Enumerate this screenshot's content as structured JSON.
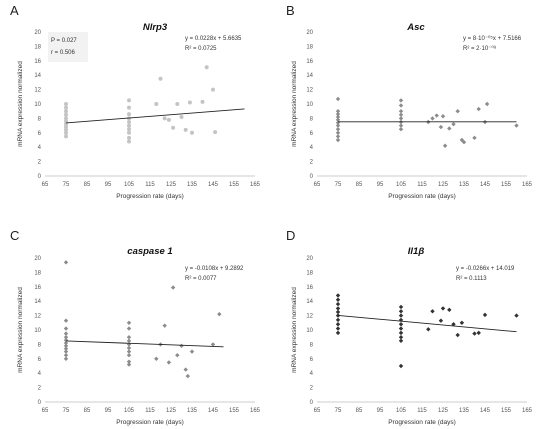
{
  "chart_data": [
    {
      "type": "scatter",
      "panel_label": "A",
      "title": "Nlrp3",
      "xlabel": "Progression rate (days)",
      "ylabel": "mRNA expression normalized",
      "xlim": [
        65,
        165
      ],
      "ylim": [
        0,
        20
      ],
      "xticks": [
        65,
        75,
        85,
        95,
        105,
        115,
        125,
        135,
        145,
        155,
        165
      ],
      "yticks": [
        0,
        2,
        4,
        6,
        8,
        10,
        12,
        14,
        16,
        18,
        20
      ],
      "equation": "y = 0.0228x + 5.6635",
      "r_squared": "R² = 0.0725",
      "stats": [
        "P = 0.027",
        "r = 0.506"
      ],
      "marker_color": "#c4c4c4",
      "marker": "circle",
      "trend": {
        "slope": 0.0228,
        "intercept": 5.6635,
        "x_range": [
          75,
          160
        ]
      },
      "points": [
        {
          "x": 75,
          "y": 5.5
        },
        {
          "x": 75,
          "y": 6.0
        },
        {
          "x": 75,
          "y": 6.4
        },
        {
          "x": 75,
          "y": 6.8
        },
        {
          "x": 75,
          "y": 7.2
        },
        {
          "x": 75,
          "y": 7.6
        },
        {
          "x": 75,
          "y": 8.0
        },
        {
          "x": 75,
          "y": 8.5
        },
        {
          "x": 75,
          "y": 9.0
        },
        {
          "x": 75,
          "y": 9.5
        },
        {
          "x": 75,
          "y": 10.0
        },
        {
          "x": 105,
          "y": 4.8
        },
        {
          "x": 105,
          "y": 5.3
        },
        {
          "x": 105,
          "y": 6.0
        },
        {
          "x": 105,
          "y": 6.5
        },
        {
          "x": 105,
          "y": 7.0
        },
        {
          "x": 105,
          "y": 7.5
        },
        {
          "x": 105,
          "y": 8.0
        },
        {
          "x": 105,
          "y": 8.6
        },
        {
          "x": 105,
          "y": 9.5
        },
        {
          "x": 105,
          "y": 10.5
        },
        {
          "x": 118,
          "y": 10.0
        },
        {
          "x": 120,
          "y": 13.5
        },
        {
          "x": 122,
          "y": 8.0
        },
        {
          "x": 124,
          "y": 7.8
        },
        {
          "x": 126,
          "y": 6.7
        },
        {
          "x": 128,
          "y": 10.0
        },
        {
          "x": 130,
          "y": 8.2
        },
        {
          "x": 132,
          "y": 6.4
        },
        {
          "x": 134,
          "y": 10.2
        },
        {
          "x": 135,
          "y": 6.0
        },
        {
          "x": 140,
          "y": 10.3
        },
        {
          "x": 142,
          "y": 15.1
        },
        {
          "x": 145,
          "y": 12.0
        },
        {
          "x": 146,
          "y": 6.1
        }
      ]
    },
    {
      "type": "scatter",
      "panel_label": "B",
      "title": "Asc",
      "xlabel": "Progression rate (days)",
      "ylabel": "mRNA expression normalized",
      "xlim": [
        65,
        165
      ],
      "ylim": [
        0,
        20
      ],
      "xticks": [
        65,
        75,
        85,
        95,
        105,
        115,
        125,
        135,
        145,
        155,
        165
      ],
      "yticks": [
        0,
        2,
        4,
        6,
        8,
        10,
        12,
        14,
        16,
        18,
        20
      ],
      "equation": "y = 8·10⁻⁰⁵x + 7.5166",
      "r_squared": "R² = 2·10⁻⁰⁸",
      "stats": [],
      "marker_color": "#8c8c8c",
      "marker": "diamond",
      "trend": {
        "slope": 8e-05,
        "intercept": 7.5166,
        "x_range": [
          75,
          160
        ]
      },
      "points": [
        {
          "x": 75,
          "y": 5.0
        },
        {
          "x": 75,
          "y": 5.5
        },
        {
          "x": 75,
          "y": 6.0
        },
        {
          "x": 75,
          "y": 6.5
        },
        {
          "x": 75,
          "y": 7.0
        },
        {
          "x": 75,
          "y": 7.4
        },
        {
          "x": 75,
          "y": 7.8
        },
        {
          "x": 75,
          "y": 8.2
        },
        {
          "x": 75,
          "y": 8.6
        },
        {
          "x": 75,
          "y": 9.0
        },
        {
          "x": 75,
          "y": 10.7
        },
        {
          "x": 105,
          "y": 6.5
        },
        {
          "x": 105,
          "y": 7.0
        },
        {
          "x": 105,
          "y": 7.5
        },
        {
          "x": 105,
          "y": 8.0
        },
        {
          "x": 105,
          "y": 8.5
        },
        {
          "x": 105,
          "y": 9.0
        },
        {
          "x": 105,
          "y": 9.8
        },
        {
          "x": 105,
          "y": 10.5
        },
        {
          "x": 118,
          "y": 7.5
        },
        {
          "x": 120,
          "y": 8.0
        },
        {
          "x": 122,
          "y": 8.4
        },
        {
          "x": 124,
          "y": 6.8
        },
        {
          "x": 125,
          "y": 8.3
        },
        {
          "x": 126,
          "y": 4.2
        },
        {
          "x": 128,
          "y": 6.6
        },
        {
          "x": 130,
          "y": 7.2
        },
        {
          "x": 132,
          "y": 9.0
        },
        {
          "x": 134,
          "y": 5.0
        },
        {
          "x": 135,
          "y": 4.7
        },
        {
          "x": 140,
          "y": 5.3
        },
        {
          "x": 142,
          "y": 9.3
        },
        {
          "x": 145,
          "y": 7.5
        },
        {
          "x": 146,
          "y": 10.0
        },
        {
          "x": 160,
          "y": 7.0
        }
      ]
    },
    {
      "type": "scatter",
      "panel_label": "C",
      "title": "caspase 1",
      "xlabel": "Progression rate (days)",
      "ylabel": "mRNA expression normalized",
      "xlim": [
        65,
        165
      ],
      "ylim": [
        0,
        20
      ],
      "xticks": [
        65,
        75,
        85,
        95,
        105,
        115,
        125,
        135,
        145,
        155,
        165
      ],
      "yticks": [
        0,
        2,
        4,
        6,
        8,
        10,
        12,
        14,
        16,
        18,
        20
      ],
      "equation": "y = -0.0108x + 9.2892",
      "r_squared": "R² = 0.0077",
      "stats": [],
      "marker_color": "#8c8c8c",
      "marker": "diamond",
      "trend": {
        "slope": -0.0108,
        "intercept": 9.2892,
        "x_range": [
          75,
          150
        ]
      },
      "points": [
        {
          "x": 75,
          "y": 6.0
        },
        {
          "x": 75,
          "y": 6.5
        },
        {
          "x": 75,
          "y": 7.0
        },
        {
          "x": 75,
          "y": 7.4
        },
        {
          "x": 75,
          "y": 7.8
        },
        {
          "x": 75,
          "y": 8.2
        },
        {
          "x": 75,
          "y": 8.6
        },
        {
          "x": 75,
          "y": 9.0
        },
        {
          "x": 75,
          "y": 9.5
        },
        {
          "x": 75,
          "y": 10.2
        },
        {
          "x": 75,
          "y": 11.3
        },
        {
          "x": 75,
          "y": 19.4
        },
        {
          "x": 105,
          "y": 5.2
        },
        {
          "x": 105,
          "y": 5.6
        },
        {
          "x": 105,
          "y": 6.5
        },
        {
          "x": 105,
          "y": 7.0
        },
        {
          "x": 105,
          "y": 7.5
        },
        {
          "x": 105,
          "y": 8.0
        },
        {
          "x": 105,
          "y": 8.5
        },
        {
          "x": 105,
          "y": 9.0
        },
        {
          "x": 105,
          "y": 10.2
        },
        {
          "x": 105,
          "y": 11.0
        },
        {
          "x": 118,
          "y": 6.0
        },
        {
          "x": 120,
          "y": 8.0
        },
        {
          "x": 122,
          "y": 10.6
        },
        {
          "x": 124,
          "y": 5.5
        },
        {
          "x": 126,
          "y": 15.9
        },
        {
          "x": 128,
          "y": 6.5
        },
        {
          "x": 130,
          "y": 7.8
        },
        {
          "x": 132,
          "y": 4.5
        },
        {
          "x": 133,
          "y": 3.6
        },
        {
          "x": 135,
          "y": 7.0
        },
        {
          "x": 145,
          "y": 8.0
        },
        {
          "x": 148,
          "y": 12.2
        }
      ]
    },
    {
      "type": "scatter",
      "panel_label": "D",
      "title": "Il1β",
      "xlabel": "Progression rate (days)",
      "ylabel": "mRNA expression normalized",
      "xlim": [
        65,
        165
      ],
      "ylim": [
        0,
        20
      ],
      "xticks": [
        65,
        75,
        85,
        95,
        105,
        115,
        125,
        135,
        145,
        155,
        165
      ],
      "yticks": [
        0,
        2,
        4,
        6,
        8,
        10,
        12,
        14,
        16,
        18,
        20
      ],
      "equation": "y = -0.0266x + 14.019",
      "r_squared": "R² = 0.1113",
      "stats": [],
      "marker_color": "#333333",
      "marker": "diamond",
      "trend": {
        "slope": -0.0266,
        "intercept": 14.019,
        "x_range": [
          75,
          160
        ]
      },
      "points": [
        {
          "x": 75,
          "y": 9.6
        },
        {
          "x": 75,
          "y": 10.2
        },
        {
          "x": 75,
          "y": 10.8
        },
        {
          "x": 75,
          "y": 11.4
        },
        {
          "x": 75,
          "y": 12.0
        },
        {
          "x": 75,
          "y": 12.5
        },
        {
          "x": 75,
          "y": 13.0
        },
        {
          "x": 75,
          "y": 13.6
        },
        {
          "x": 75,
          "y": 14.2
        },
        {
          "x": 75,
          "y": 14.8
        },
        {
          "x": 105,
          "y": 5.0
        },
        {
          "x": 105,
          "y": 8.5
        },
        {
          "x": 105,
          "y": 9.0
        },
        {
          "x": 105,
          "y": 9.6
        },
        {
          "x": 105,
          "y": 10.2
        },
        {
          "x": 105,
          "y": 10.8
        },
        {
          "x": 105,
          "y": 11.4
        },
        {
          "x": 105,
          "y": 12.0
        },
        {
          "x": 105,
          "y": 12.6
        },
        {
          "x": 105,
          "y": 13.2
        },
        {
          "x": 118,
          "y": 10.1
        },
        {
          "x": 120,
          "y": 12.6
        },
        {
          "x": 124,
          "y": 11.3
        },
        {
          "x": 125,
          "y": 13.0
        },
        {
          "x": 128,
          "y": 12.8
        },
        {
          "x": 130,
          "y": 10.8
        },
        {
          "x": 132,
          "y": 9.3
        },
        {
          "x": 134,
          "y": 11.0
        },
        {
          "x": 140,
          "y": 9.5
        },
        {
          "x": 142,
          "y": 9.6
        },
        {
          "x": 145,
          "y": 12.1
        },
        {
          "x": 160,
          "y": 12.0
        }
      ]
    }
  ]
}
